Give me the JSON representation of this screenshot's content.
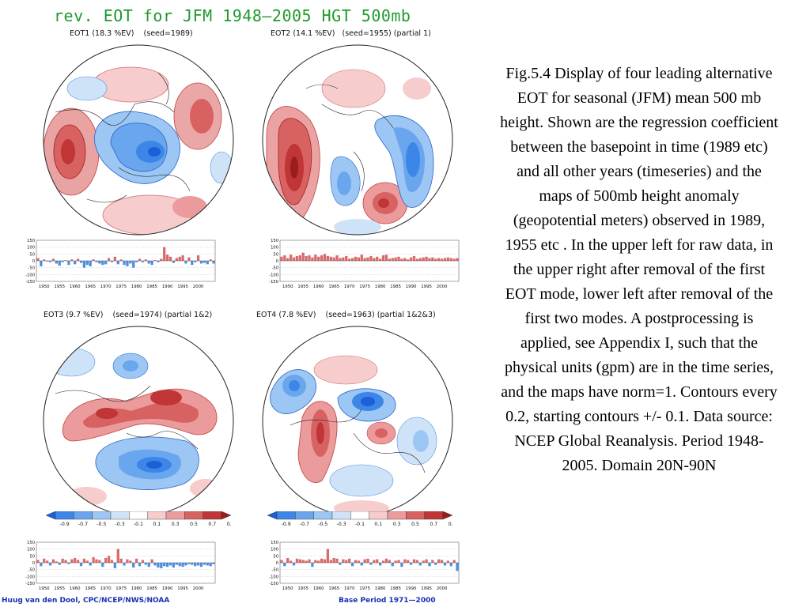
{
  "title": "rev. EOT for JFM 1948—2005 HGT 500mb",
  "panels": [
    {
      "label": "EOT1 (18.3 %EV)    (seed=1989)"
    },
    {
      "label": "EOT2 (14.1 %EV)   (seed=1955) (partial 1)"
    },
    {
      "label": "EOT3 (9.7 %EV)    (seed=1974) (partial 1&2)"
    },
    {
      "label": "EOT4 (7.8 %EV)    (seed=1963) (partial 1&2&3)"
    }
  ],
  "colorbar": {
    "ticks": [
      "-0.9",
      "-0.7",
      "-0.5",
      "-0.3",
      "-0.1",
      "0.1",
      "0.3",
      "0.5",
      "0.7",
      "0.9"
    ],
    "colors": [
      "#1c5fd6",
      "#3c86e8",
      "#6aa6ee",
      "#9cc6f3",
      "#cfe3f8",
      "#ffffff",
      "#f6cccc",
      "#eb9b9b",
      "#d86262",
      "#c03535",
      "#9a1c1c"
    ]
  },
  "caption": "Fig.5.4 Display of  four leading alternative EOT for seasonal (JFM) mean 500 mb height. Shown are the regression coefficient between the basepoint in time (1989 etc) and all other years (timeseries) and the maps of 500mb height anomaly (geopotential meters) observed in 1989, 1955 etc . In the upper left for raw data, in the upper right after removal of the first EOT mode, lower left after removal of the first two modes. A postprocessing is applied, see Appendix I, such that the physical units (gpm) are in the time series, and the maps have norm=1. Contours every 0.2, starting contours +/- 0.1. Data source: NCEP Global Reanalysis. Period 1948-2005. Domain 20N-90N",
  "footer_left": "Huug van den Dool, CPC/NCEP/NWS/NOAA",
  "footer_right": "Base Period 1971—2000",
  "colors": {
    "positive": "#d96a6a",
    "negative": "#4d8fe0",
    "title": "#1e9a2c",
    "footer": "#1a2fb0"
  },
  "chart_data": [
    {
      "type": "bar",
      "name": "EOT1 time series",
      "x": [
        1948,
        1949,
        1950,
        1951,
        1952,
        1953,
        1954,
        1955,
        1956,
        1957,
        1958,
        1959,
        1960,
        1961,
        1962,
        1963,
        1964,
        1965,
        1966,
        1967,
        1968,
        1969,
        1970,
        1971,
        1972,
        1973,
        1974,
        1975,
        1976,
        1977,
        1978,
        1979,
        1980,
        1981,
        1982,
        1983,
        1984,
        1985,
        1986,
        1987,
        1988,
        1989,
        1990,
        1991,
        1992,
        1993,
        1994,
        1995,
        1996,
        1997,
        1998,
        1999,
        2000,
        2001,
        2002,
        2003,
        2004,
        2005
      ],
      "values": [
        20,
        -40,
        10,
        -5,
        -10,
        15,
        -20,
        -35,
        -10,
        5,
        -30,
        10,
        -25,
        15,
        -15,
        -50,
        -30,
        -40,
        10,
        -10,
        -20,
        -30,
        -25,
        20,
        -10,
        30,
        -25,
        10,
        -30,
        -40,
        -20,
        -50,
        -10,
        15,
        -10,
        10,
        -20,
        -30,
        5,
        -10,
        15,
        100,
        45,
        30,
        -15,
        20,
        30,
        40,
        -20,
        25,
        -30,
        -10,
        40,
        -20,
        -15,
        -25,
        10,
        -20
      ],
      "yticks": [
        "150",
        "100",
        "50",
        "0",
        "-50",
        "-100",
        "-150"
      ],
      "xticks": [
        "1950",
        "1955",
        "1960",
        "1965",
        "1970",
        "1975",
        "1980",
        "1985",
        "1990",
        "1995",
        "2000"
      ],
      "ylim": [
        -150,
        150
      ]
    },
    {
      "type": "bar",
      "name": "EOT2 time series",
      "x": [
        1948,
        1949,
        1950,
        1951,
        1952,
        1953,
        1954,
        1955,
        1956,
        1957,
        1958,
        1959,
        1960,
        1961,
        1962,
        1963,
        1964,
        1965,
        1966,
        1967,
        1968,
        1969,
        1970,
        1971,
        1972,
        1973,
        1974,
        1975,
        1976,
        1977,
        1978,
        1979,
        1980,
        1981,
        1982,
        1983,
        1984,
        1985,
        1986,
        1987,
        1988,
        1989,
        1990,
        1991,
        1992,
        1993,
        1994,
        1995,
        1996,
        1997,
        1998,
        1999,
        2000,
        2001,
        2002,
        2003,
        2004,
        2005
      ],
      "values": [
        30,
        40,
        20,
        45,
        25,
        35,
        40,
        60,
        35,
        40,
        25,
        45,
        30,
        40,
        50,
        35,
        30,
        25,
        40,
        20,
        25,
        35,
        15,
        20,
        30,
        25,
        45,
        20,
        25,
        35,
        20,
        30,
        15,
        40,
        45,
        15,
        20,
        25,
        30,
        15,
        20,
        10,
        25,
        35,
        15,
        20,
        25,
        30,
        20,
        25,
        15,
        20,
        15,
        20,
        25,
        20,
        15,
        20
      ],
      "yticks": [
        "150",
        "100",
        "50",
        "0",
        "-50",
        "-100",
        "-150"
      ],
      "xticks": [
        "1950",
        "1955",
        "1960",
        "1965",
        "1970",
        "1975",
        "1980",
        "1985",
        "1990",
        "1995",
        "2000"
      ],
      "ylim": [
        -150,
        150
      ]
    },
    {
      "type": "bar",
      "name": "EOT3 time series",
      "x": [
        1948,
        1949,
        1950,
        1951,
        1952,
        1953,
        1954,
        1955,
        1956,
        1957,
        1958,
        1959,
        1960,
        1961,
        1962,
        1963,
        1964,
        1965,
        1966,
        1967,
        1968,
        1969,
        1970,
        1971,
        1972,
        1973,
        1974,
        1975,
        1976,
        1977,
        1978,
        1979,
        1980,
        1981,
        1982,
        1983,
        1984,
        1985,
        1986,
        1987,
        1988,
        1989,
        1990,
        1991,
        1992,
        1993,
        1994,
        1995,
        1996,
        1997,
        1998,
        1999,
        2000,
        2001,
        2002,
        2003,
        2004,
        2005
      ],
      "values": [
        20,
        -25,
        30,
        15,
        -20,
        25,
        10,
        -15,
        30,
        20,
        -10,
        25,
        35,
        20,
        -25,
        30,
        15,
        -20,
        40,
        25,
        20,
        -30,
        35,
        50,
        20,
        -40,
        100,
        30,
        -20,
        25,
        15,
        -35,
        30,
        -25,
        20,
        -15,
        -30,
        25,
        -20,
        -35,
        -40,
        -25,
        -30,
        -20,
        -35,
        -15,
        -25,
        -30,
        -20,
        -10,
        -15,
        -25,
        -20,
        -30,
        -15,
        -20,
        -25,
        -10
      ],
      "yticks": [
        "150",
        "100",
        "50",
        "0",
        "-50",
        "-100",
        "-150"
      ],
      "xticks": [
        "1950",
        "1955",
        "1960",
        "1965",
        "1970",
        "1975",
        "1980",
        "1985",
        "1990",
        "1995",
        "2000"
      ],
      "ylim": [
        -150,
        150
      ]
    },
    {
      "type": "bar",
      "name": "EOT4 time series",
      "x": [
        1948,
        1949,
        1950,
        1951,
        1952,
        1953,
        1954,
        1955,
        1956,
        1957,
        1958,
        1959,
        1960,
        1961,
        1962,
        1963,
        1964,
        1965,
        1966,
        1967,
        1968,
        1969,
        1970,
        1971,
        1972,
        1973,
        1974,
        1975,
        1976,
        1977,
        1978,
        1979,
        1980,
        1981,
        1982,
        1983,
        1984,
        1985,
        1986,
        1987,
        1988,
        1989,
        1990,
        1991,
        1992,
        1993,
        1994,
        1995,
        1996,
        1997,
        1998,
        1999,
        2000,
        2001,
        2002,
        2003,
        2004,
        2005
      ],
      "values": [
        20,
        -25,
        35,
        15,
        -20,
        30,
        25,
        20,
        15,
        25,
        -30,
        20,
        15,
        30,
        25,
        100,
        20,
        35,
        30,
        -15,
        25,
        20,
        30,
        -25,
        20,
        15,
        -20,
        25,
        30,
        -15,
        20,
        25,
        -20,
        15,
        30,
        20,
        -25,
        15,
        20,
        -30,
        25,
        20,
        -15,
        25,
        20,
        -20,
        15,
        25,
        -25,
        20,
        -15,
        25,
        20,
        -20,
        15,
        -25,
        20,
        -60
      ],
      "yticks": [
        "150",
        "100",
        "50",
        "0",
        "-50",
        "-100",
        "-150"
      ],
      "xticks": [
        "1950",
        "1955",
        "1960",
        "1965",
        "1970",
        "1975",
        "1980",
        "1985",
        "1990",
        "1995",
        "2000"
      ],
      "ylim": [
        -150,
        150
      ]
    }
  ]
}
